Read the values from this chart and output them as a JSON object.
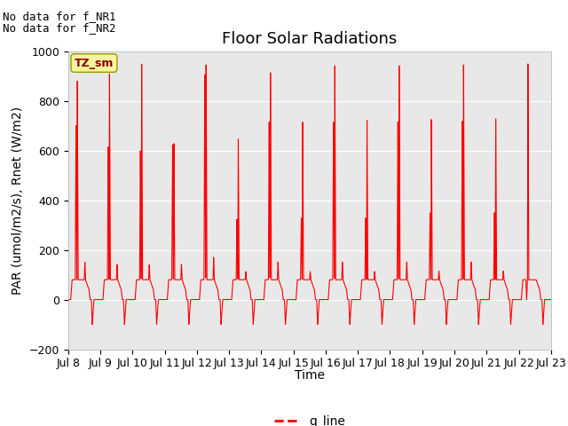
{
  "title": "Floor Solar Radiations",
  "xlabel": "Time",
  "ylabel": "PAR (umol/m2/s), Rnet (W/m2)",
  "ylim": [
    -200,
    1000
  ],
  "yticks": [
    -200,
    0,
    200,
    400,
    600,
    800,
    1000
  ],
  "date_start": 8,
  "date_end": 23,
  "line_color": "#ff0000",
  "legend_label": "q_line",
  "no_data_text1": "No data for f_NR1",
  "no_data_text2": "No data for f_NR2",
  "tz_label": "TZ_sm",
  "bg_color": "#e8e8e8",
  "title_fontsize": 13,
  "axis_label_fontsize": 10,
  "tick_fontsize": 9,
  "annotation_fontsize": 9,
  "day_peaks": [
    880,
    910,
    950,
    630,
    950,
    650,
    920,
    720,
    950,
    730,
    950,
    730,
    950,
    730,
    950
  ],
  "day_secondary": [
    700,
    615,
    600,
    625,
    910,
    325,
    720,
    330,
    720,
    330,
    720,
    350,
    720,
    350,
    0
  ],
  "plateau_val": 80,
  "neg_val": -100,
  "n_days": 15
}
